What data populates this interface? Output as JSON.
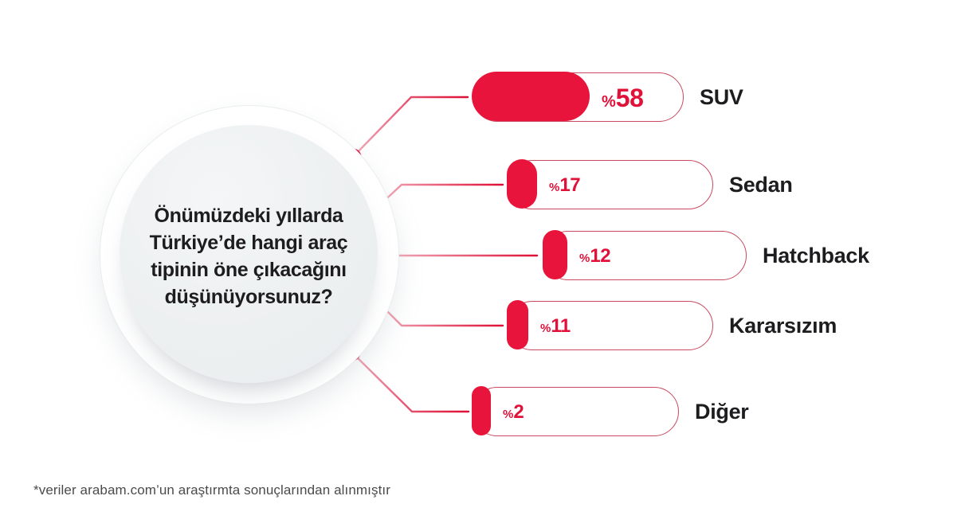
{
  "question": {
    "lines": [
      "Önümüzdeki yıllarda",
      "Türkiye’de hangi araç",
      "tipinin öne çıkacağını",
      "düşünüyorsunuz?"
    ],
    "full": "Önümüzdeki yıllarda Türkiye’de hangi araç tipinin öne çıkacağını düşünüyorsunuz?"
  },
  "bars": [
    {
      "label": "SUV",
      "value": 58,
      "pct_sign": "%",
      "display": "%58"
    },
    {
      "label": "Sedan",
      "value": 17,
      "pct_sign": "%",
      "display": "%17"
    },
    {
      "label": "Hatchback",
      "value": 12,
      "pct_sign": "%",
      "display": "%12"
    },
    {
      "label": "Kararsızım",
      "value": 11,
      "pct_sign": "%",
      "display": "%11"
    },
    {
      "label": "Diğer",
      "value": 2,
      "pct_sign": "%",
      "display": "%2"
    }
  ],
  "footnote": "*veriler arabam.com’un araştırmta sonuçlarından alınmıştır",
  "colors": {
    "accent_red": "#e8143c",
    "pct_red": "#e0123a",
    "pill_border": "#c9485f",
    "connector_start": "#f2afbd",
    "connector_end": "#de0f36",
    "label_dark": "#1d1d1f",
    "circle_fill": "#edf0f1",
    "footnote_gray": "#4b4b4b"
  },
  "chart_data": {
    "type": "bar",
    "orientation": "horizontal",
    "categories": [
      "SUV",
      "Sedan",
      "Hatchback",
      "Kararsızım",
      "Diğer"
    ],
    "values": [
      58,
      17,
      12,
      11,
      2
    ],
    "value_format": "%{value}",
    "title": "Önümüzdeki yıllarda Türkiye’de hangi araç tipinin öne çıkacağını düşünüyorsunuz?",
    "source_note": "*veriler arabam.com’un araştırmta sonuçlarından alınmıştır",
    "legend": false,
    "axes": false,
    "xlim": [
      0,
      100
    ],
    "bar_color": "#e8143c",
    "bar_outline": "#c9485f"
  }
}
